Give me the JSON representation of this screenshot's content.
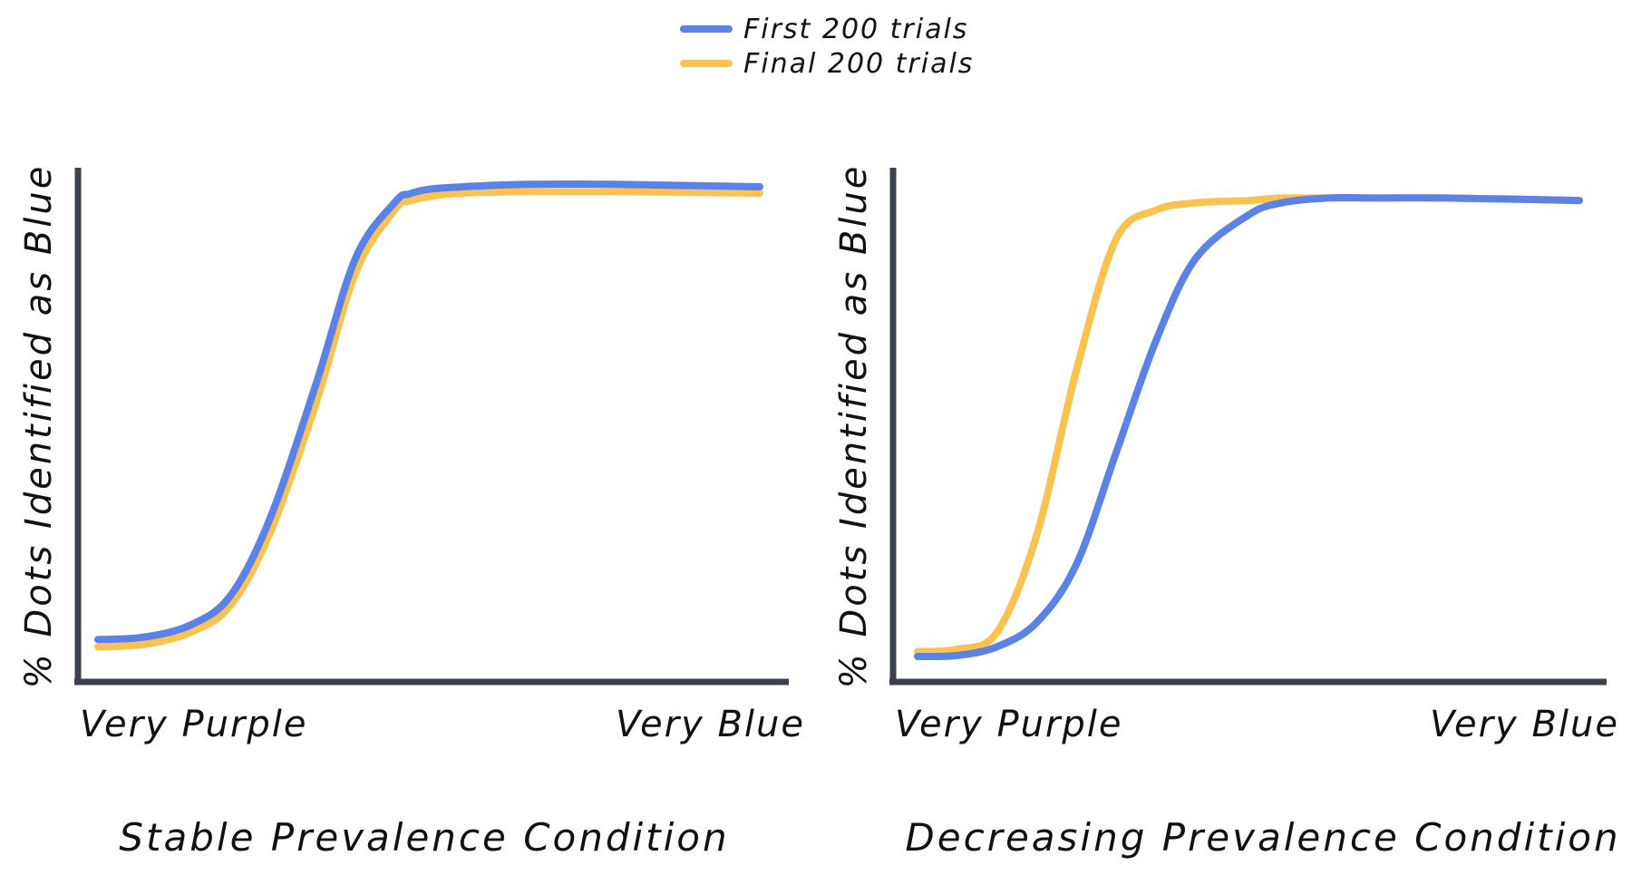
{
  "colors": {
    "first": "#5b82e6",
    "final": "#fcc24f",
    "axis": "#3c4150",
    "text": "#111111"
  },
  "legend": {
    "placement": "top-center",
    "entries": [
      {
        "label": "First 200 trials",
        "color": "#5b82e6"
      },
      {
        "label": "Final 200 trials",
        "color": "#fcc24f"
      }
    ]
  },
  "chart_data": [
    {
      "type": "line",
      "title": "Stable Prevalence Condition",
      "ylabel": "% Dots Identified as Blue",
      "x_tick_labels": [
        "Very Purple",
        "Very Blue"
      ],
      "xlim": [
        0,
        1
      ],
      "ylim": [
        0,
        1
      ],
      "grid": false,
      "series": [
        {
          "name": "First 200 trials",
          "x": [
            0,
            0.07,
            0.14,
            0.2,
            0.26,
            0.33,
            0.39,
            0.45,
            0.47,
            0.5,
            0.55,
            0.65,
            0.78,
            1.0
          ],
          "y": [
            0.05,
            0.055,
            0.08,
            0.14,
            0.3,
            0.58,
            0.84,
            0.955,
            0.97,
            0.98,
            0.985,
            0.99,
            0.99,
            0.985
          ]
        },
        {
          "name": "Final 200 trials",
          "x": [
            0,
            0.07,
            0.14,
            0.2,
            0.26,
            0.33,
            0.39,
            0.45,
            0.47,
            0.5,
            0.55,
            0.65,
            0.78,
            1.0
          ],
          "y": [
            0.035,
            0.04,
            0.065,
            0.12,
            0.27,
            0.54,
            0.81,
            0.94,
            0.955,
            0.965,
            0.972,
            0.975,
            0.975,
            0.972
          ]
        }
      ]
    },
    {
      "type": "line",
      "title": "Decreasing Prevalence Condition",
      "ylabel": "% Dots Identified as Blue",
      "x_tick_labels": [
        "Very Purple",
        "Very Blue"
      ],
      "xlim": [
        0,
        1
      ],
      "ylim": [
        0,
        1
      ],
      "grid": false,
      "series": [
        {
          "name": "First 200 trials",
          "x": [
            0,
            0.06,
            0.12,
            0.18,
            0.24,
            0.3,
            0.36,
            0.42,
            0.5,
            0.55,
            0.62,
            0.7,
            0.8,
            1.0
          ],
          "y": [
            0.03,
            0.032,
            0.05,
            0.1,
            0.22,
            0.45,
            0.68,
            0.85,
            0.94,
            0.965,
            0.975,
            0.975,
            0.975,
            0.97
          ]
        },
        {
          "name": "Final 200 trials",
          "x": [
            0,
            0.06,
            0.12,
            0.18,
            0.24,
            0.3,
            0.36,
            0.42,
            0.5,
            0.55,
            0.62,
            0.7,
            0.8,
            1.0
          ],
          "y": [
            0.04,
            0.045,
            0.08,
            0.28,
            0.62,
            0.89,
            0.95,
            0.965,
            0.97,
            0.975,
            0.975,
            0.975,
            0.975,
            0.97
          ]
        }
      ]
    }
  ]
}
